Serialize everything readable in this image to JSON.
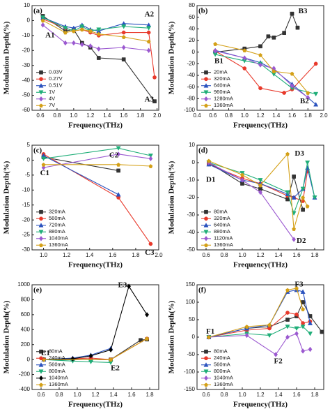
{
  "chart_data": [
    {
      "type": "line",
      "panel_label": "(a)",
      "x_label": "Frequency(THz)",
      "y_label": "Modulation Depth(%)",
      "xlim": [
        0.5,
        2.02
      ],
      "ylim": [
        -60,
        10
      ],
      "xticks": [
        0.6,
        0.8,
        {
          "value": 1,
          "label": "1.0"
        },
        1.2,
        1.4,
        1.6,
        1.8,
        {
          "value": 2,
          "label": "2.0"
        }
      ],
      "yticks": [
        10,
        0,
        -10,
        -20,
        -30,
        -40,
        -50,
        -60
      ],
      "legend": "lower left",
      "annotations": [
        "A1",
        "A2",
        "A3"
      ],
      "series": [
        {
          "name": "0.03V",
          "color": "#333333",
          "x": [
            0.63,
            0.9,
            1.0,
            1.1,
            1.2,
            1.3,
            1.6,
            1.97
          ],
          "values": [
            3,
            -7,
            -6,
            -15,
            -18,
            -25,
            -26,
            -54
          ]
        },
        {
          "name": "0.27V",
          "color": "#e8392b",
          "x": [
            0.63,
            0.9,
            1.0,
            1.1,
            1.2,
            1.3,
            1.6,
            1.9,
            1.97
          ],
          "values": [
            1,
            -5,
            -7,
            -6,
            -8,
            -10,
            -8,
            -8,
            -38
          ]
        },
        {
          "name": "0.51V",
          "color": "#2a52be",
          "x": [
            0.63,
            0.9,
            1.0,
            1.1,
            1.2,
            1.3,
            1.6,
            1.9
          ],
          "values": [
            2,
            -4,
            -5,
            -3,
            -6,
            -7,
            -2,
            -3
          ]
        },
        {
          "name": "1V",
          "color": "#1fae78",
          "x": [
            0.63,
            0.9,
            1.0,
            1.1,
            1.2,
            1.3,
            1.6,
            1.9
          ],
          "values": [
            2,
            -5,
            -7,
            -4,
            -7,
            -6,
            -4,
            -5
          ]
        },
        {
          "name": "4V",
          "color": "#9b59d0",
          "x": [
            0.63,
            0.9,
            1.0,
            1.1,
            1.2,
            1.3,
            1.6,
            1.9
          ],
          "values": [
            -3,
            -15,
            -15,
            -16,
            -17,
            -19,
            -18,
            -20
          ]
        },
        {
          "name": "7V",
          "color": "#d4a017",
          "x": [
            0.63,
            0.9,
            1.0,
            1.1,
            1.2,
            1.3,
            1.6,
            1.9
          ],
          "values": [
            0,
            -8,
            -7,
            -6,
            -7,
            -9,
            -11,
            -14
          ]
        }
      ]
    },
    {
      "type": "line",
      "panel_label": "(b)",
      "x_label": "Frequency(THz)",
      "y_label": "Modulation Depth(%)",
      "xlim": [
        0.4,
        2.0
      ],
      "ylim": [
        -100,
        80
      ],
      "xticks": [
        0.4,
        0.6,
        0.8,
        {
          "value": 1,
          "label": "1.0"
        },
        1.2,
        1.4,
        1.6,
        1.8,
        {
          "value": 2,
          "label": "2.0"
        }
      ],
      "yticks": [
        80,
        60,
        40,
        20,
        0,
        -20,
        -40,
        -60,
        -80,
        -100
      ],
      "legend": "lower left",
      "annotations": [
        "B1",
        "B2",
        "B3"
      ],
      "series": [
        {
          "name": "20mA",
          "color": "#333333",
          "x": [
            0.63,
            1.0,
            1.2,
            1.3,
            1.37,
            1.5,
            1.6,
            1.67
          ],
          "values": [
            0,
            6,
            10,
            27,
            25,
            33,
            66,
            42
          ]
        },
        {
          "name": "320mA",
          "color": "#e8392b",
          "x": [
            0.63,
            1.0,
            1.2,
            1.5,
            1.6,
            1.9
          ],
          "values": [
            2,
            -28,
            -62,
            -70,
            -64,
            -20
          ]
        },
        {
          "name": "640mA",
          "color": "#2a52be",
          "x": [
            0.63,
            1.0,
            1.2,
            1.37,
            1.6,
            1.9
          ],
          "values": [
            3,
            -10,
            -18,
            -30,
            -55,
            -90
          ]
        },
        {
          "name": "960mA",
          "color": "#1fae78",
          "x": [
            0.63,
            1.0,
            1.2,
            1.37,
            1.6,
            1.9
          ],
          "values": [
            -4,
            -15,
            -20,
            -38,
            -62,
            -72
          ]
        },
        {
          "name": "1280mA",
          "color": "#9b59d0",
          "x": [
            0.63,
            1.0,
            1.2,
            1.37,
            1.6,
            1.8
          ],
          "values": [
            2,
            -10,
            -22,
            -28,
            -58,
            -78
          ]
        },
        {
          "name": "1360mA",
          "color": "#d4a017",
          "x": [
            0.63,
            1.0,
            1.2,
            1.37,
            1.6,
            1.8
          ],
          "values": [
            14,
            3,
            -5,
            -33,
            -37,
            -70
          ]
        }
      ]
    },
    {
      "type": "line",
      "panel_label": "(c)",
      "x_label": "Frequency(THz)",
      "y_label": "Modulation Depth(%)",
      "xlim": [
        0.9,
        2.0
      ],
      "ylim": [
        -30,
        5
      ],
      "xticks": [
        {
          "value": 1,
          "label": "1.0"
        },
        1.2,
        1.4,
        1.6,
        1.8,
        {
          "value": 2,
          "label": "2.0"
        }
      ],
      "yticks": [
        5,
        0,
        -5,
        -10,
        -15,
        -20,
        -25,
        -30
      ],
      "legend": "lower left",
      "annotations": [
        "C1",
        "C2",
        "C3"
      ],
      "series": [
        {
          "name": "320mA",
          "color": "#333333",
          "x": [
            1.0,
            1.65
          ],
          "values": [
            1,
            -3.5
          ]
        },
        {
          "name": "560mA",
          "color": "#e8392b",
          "x": [
            1.0,
            1.65,
            1.93
          ],
          "values": [
            2,
            -12.5,
            -28
          ]
        },
        {
          "name": "720mA",
          "color": "#2a52be",
          "x": [
            1.0,
            1.65
          ],
          "values": [
            1.5,
            -11.5
          ]
        },
        {
          "name": "880mA",
          "color": "#1fae78",
          "x": [
            1.0,
            1.65,
            1.93
          ],
          "values": [
            0.5,
            4,
            1.5
          ]
        },
        {
          "name": "1040mA",
          "color": "#9b59d0",
          "x": [
            1.0,
            1.65,
            1.93
          ],
          "values": [
            -2.5,
            2,
            0.5
          ]
        },
        {
          "name": "1360mA",
          "color": "#d4a017",
          "x": [
            1.0,
            1.65,
            1.93
          ],
          "values": [
            -1.5,
            -1.5,
            -2
          ]
        }
      ]
    },
    {
      "type": "line",
      "panel_label": "(d)",
      "x_label": "Frequency(THz)",
      "y_label": "Modulation Depth(%)",
      "xlim": [
        0.5,
        1.9
      ],
      "ylim": [
        -50,
        10
      ],
      "xticks": [
        0.6,
        0.8,
        {
          "value": 1,
          "label": "1.0"
        },
        1.2,
        1.4,
        1.6,
        1.8
      ],
      "yticks": [
        10,
        0,
        -10,
        -20,
        -30,
        -40,
        -50
      ],
      "legend": "lower left",
      "annotations": [
        "D1",
        "D2",
        "D3"
      ],
      "series": [
        {
          "name": "80mA",
          "color": "#333333",
          "x": [
            0.63,
            1.0,
            1.2,
            1.5,
            1.57,
            1.67
          ],
          "values": [
            0,
            -12,
            -15,
            -21,
            -8,
            -27
          ]
        },
        {
          "name": "320mA",
          "color": "#e8392b",
          "x": [
            0.63,
            1.0,
            1.2,
            1.5,
            1.57,
            1.67,
            1.72
          ],
          "values": [
            -1,
            -9,
            -12,
            -19,
            -20,
            -22,
            -5
          ]
        },
        {
          "name": "640mA",
          "color": "#2a52be",
          "x": [
            0.63,
            1.0,
            1.2,
            1.5,
            1.57,
            1.67,
            1.72,
            1.8
          ],
          "values": [
            -1,
            -10,
            -12,
            -18,
            -20,
            -15,
            -3,
            -20
          ]
        },
        {
          "name": "880mA",
          "color": "#1fae78",
          "x": [
            0.63,
            1.0,
            1.2,
            1.5,
            1.57,
            1.67,
            1.72,
            1.8
          ],
          "values": [
            0,
            -6,
            -10,
            -17,
            -29,
            -15,
            0,
            -20
          ]
        },
        {
          "name": "1120mA",
          "color": "#9b59d0",
          "x": [
            0.63,
            1.0,
            1.2,
            1.57
          ],
          "values": [
            0,
            -10,
            -17,
            -44
          ]
        },
        {
          "name": "1360mA",
          "color": "#d4a017",
          "x": [
            0.63,
            1.0,
            1.2,
            1.5,
            1.57,
            1.67,
            1.72
          ],
          "values": [
            1,
            -7,
            -13,
            5,
            -38,
            -20,
            -25
          ]
        }
      ]
    },
    {
      "type": "line",
      "panel_label": "(e)",
      "x_label": "Frequency(THz)",
      "y_label": "Modulation Depth(%)",
      "xlim": [
        0.5,
        1.9
      ],
      "ylim": [
        -400,
        1000
      ],
      "xticks": [
        0.6,
        0.8,
        {
          "value": 1,
          "label": "1.0"
        },
        1.2,
        1.4,
        1.6,
        1.8
      ],
      "yticks": [
        1000,
        800,
        600,
        400,
        200,
        0,
        -200,
        -400
      ],
      "legend": "lower left",
      "annotations": [
        "E1",
        "E2",
        "E3"
      ],
      "series": [
        {
          "name": "80mA",
          "color": "#333333",
          "x": [
            0.63,
            0.95,
            1.15,
            1.37,
            1.7,
            1.77
          ],
          "values": [
            0,
            0,
            0,
            0,
            260,
            270
          ]
        },
        {
          "name": "240mA",
          "color": "#e8392b",
          "x": [
            0.63,
            0.95,
            1.15,
            1.37,
            1.77
          ],
          "values": [
            0,
            10,
            20,
            0,
            280
          ]
        },
        {
          "name": "560mA",
          "color": "#2a52be",
          "x": [
            0.63,
            0.95,
            1.15,
            1.37
          ],
          "values": [
            0,
            20,
            60,
            150
          ]
        },
        {
          "name": "800mA",
          "color": "#1fae78",
          "x": [
            0.63,
            0.95,
            1.15,
            1.37
          ],
          "values": [
            0,
            -20,
            -30,
            -40
          ]
        },
        {
          "name": "1040mA",
          "color": "#000000",
          "x": [
            0.63,
            0.95,
            1.15,
            1.37,
            1.57,
            1.77
          ],
          "values": [
            0,
            10,
            50,
            130,
            980,
            600
          ]
        },
        {
          "name": "1360mA",
          "color": "#d4a017",
          "x": [
            0.63,
            1.37,
            1.77
          ],
          "values": [
            0,
            0,
            280
          ]
        }
      ]
    },
    {
      "type": "line",
      "panel_label": "(f)",
      "x_label": "Frequency(THz)",
      "y_label": "Modulation Depth(%)",
      "xlim": [
        0.5,
        1.9
      ],
      "ylim": [
        -150,
        150
      ],
      "xticks": [
        0.6,
        0.8,
        {
          "value": 1,
          "label": "1.0"
        },
        1.2,
        1.4,
        1.6,
        1.8
      ],
      "yticks": [
        150,
        100,
        50,
        0,
        -50,
        -100,
        -150
      ],
      "legend": "lower left",
      "annotations": [
        "F1",
        "F2",
        "F3"
      ],
      "series": [
        {
          "name": "80mA",
          "color": "#333333",
          "x": [
            0.63,
            1.05,
            1.3,
            1.5,
            1.6,
            1.67,
            1.75,
            1.88
          ],
          "values": [
            0,
            25,
            30,
            50,
            60,
            100,
            60,
            15
          ]
        },
        {
          "name": "240mA",
          "color": "#e8392b",
          "x": [
            0.63,
            1.05,
            1.3,
            1.5,
            1.6,
            1.67,
            1.75
          ],
          "values": [
            0,
            20,
            25,
            70,
            65,
            40,
            45
          ]
        },
        {
          "name": "560mA",
          "color": "#2a52be",
          "x": [
            0.63,
            1.05,
            1.3,
            1.5,
            1.6,
            1.67,
            1.75
          ],
          "values": [
            0,
            25,
            35,
            130,
            135,
            130,
            40
          ]
        },
        {
          "name": "800mA",
          "color": "#1fae78",
          "x": [
            0.63,
            1.05,
            1.3,
            1.5,
            1.6,
            1.67,
            1.75
          ],
          "values": [
            0,
            10,
            5,
            30,
            25,
            30,
            10
          ]
        },
        {
          "name": "1040mA",
          "color": "#9b59d0",
          "x": [
            0.63,
            1.05,
            1.37,
            1.5,
            1.6,
            1.67,
            1.75
          ],
          "values": [
            0,
            5,
            -50,
            0,
            10,
            -40,
            -35
          ]
        },
        {
          "name": "1360mA",
          "color": "#d4a017",
          "x": [
            0.63,
            1.05,
            1.3,
            1.5,
            1.6,
            1.67
          ],
          "values": [
            0,
            30,
            35,
            135,
            140,
            80
          ]
        }
      ]
    }
  ]
}
